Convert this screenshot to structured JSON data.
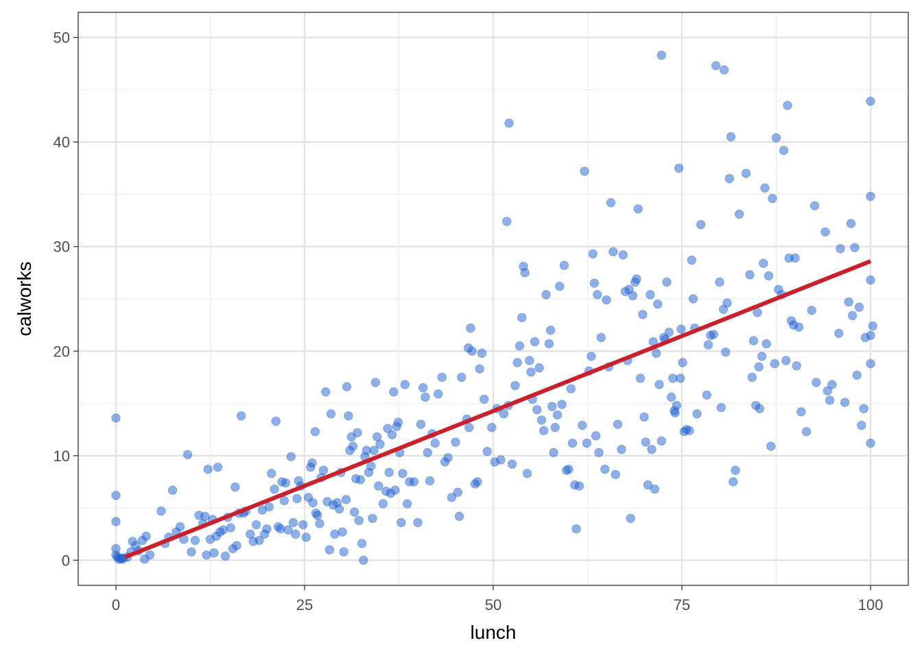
{
  "chart_data": {
    "type": "scatter",
    "title": "",
    "xlabel": "lunch",
    "ylabel": "calworks",
    "xlim": [
      -5,
      105
    ],
    "ylim": [
      -2.4,
      52.4
    ],
    "x_ticks": [
      0,
      25,
      50,
      75,
      100
    ],
    "y_ticks": [
      0,
      10,
      20,
      30,
      40,
      50
    ],
    "grid": true,
    "point_color": "#1f5fd0",
    "line_color": "#c9202b",
    "trend_line": {
      "x": [
        1.2,
        100
      ],
      "y": [
        0.3,
        28.6
      ]
    },
    "points": [
      [
        0,
        13.6
      ],
      [
        0,
        6.2
      ],
      [
        0,
        3.7
      ],
      [
        0,
        1.1
      ],
      [
        0,
        0.5
      ],
      [
        0.2,
        0.3
      ],
      [
        0.4,
        0.1
      ],
      [
        0.6,
        0.2
      ],
      [
        0.8,
        0.1
      ],
      [
        1,
        0.2
      ],
      [
        1.5,
        0.3
      ],
      [
        2,
        0.8
      ],
      [
        2.2,
        1.8
      ],
      [
        2.6,
        1.4
      ],
      [
        3,
        0.9
      ],
      [
        3.5,
        1.9
      ],
      [
        3.8,
        0.1
      ],
      [
        4,
        2.3
      ],
      [
        4.5,
        0.5
      ],
      [
        6,
        4.7
      ],
      [
        6.5,
        1.6
      ],
      [
        7,
        2.2
      ],
      [
        7.5,
        6.7
      ],
      [
        8,
        2.7
      ],
      [
        8.5,
        3.2
      ],
      [
        9,
        2
      ],
      [
        9.5,
        10.1
      ],
      [
        10,
        0.8
      ],
      [
        10.5,
        1.9
      ],
      [
        11,
        4.3
      ],
      [
        11.5,
        3.5
      ],
      [
        11.8,
        4.2
      ],
      [
        12,
        0.5
      ],
      [
        12.2,
        8.7
      ],
      [
        12.5,
        2
      ],
      [
        12.8,
        3.9
      ],
      [
        13,
        0.7
      ],
      [
        13.3,
        2.3
      ],
      [
        13.5,
        8.9
      ],
      [
        13.8,
        2.7
      ],
      [
        14.2,
        2.9
      ],
      [
        14.5,
        0.4
      ],
      [
        14.8,
        4.1
      ],
      [
        15.2,
        3.1
      ],
      [
        15.5,
        1.1
      ],
      [
        15.8,
        7
      ],
      [
        16,
        1.4
      ],
      [
        16.3,
        4.5
      ],
      [
        16.6,
        13.8
      ],
      [
        16.9,
        4.5
      ],
      [
        17.2,
        4.7
      ],
      [
        17.8,
        2.5
      ],
      [
        18.2,
        1.8
      ],
      [
        18.6,
        3.4
      ],
      [
        19,
        1.9
      ],
      [
        19.4,
        4.8
      ],
      [
        19.7,
        2.5
      ],
      [
        20,
        3
      ],
      [
        20.3,
        5.1
      ],
      [
        20.6,
        8.3
      ],
      [
        21,
        6.8
      ],
      [
        21.2,
        13.3
      ],
      [
        21.5,
        3.2
      ],
      [
        21.8,
        3
      ],
      [
        22,
        7.5
      ],
      [
        22.3,
        5.7
      ],
      [
        22.5,
        7.4
      ],
      [
        22.8,
        2.9
      ],
      [
        23.2,
        9.9
      ],
      [
        23.5,
        3.6
      ],
      [
        23.8,
        2.5
      ],
      [
        24,
        5.9
      ],
      [
        24.2,
        7.6
      ],
      [
        24.5,
        7.1
      ],
      [
        24.8,
        3.4
      ],
      [
        25.2,
        2.2
      ],
      [
        25.5,
        6
      ],
      [
        25.8,
        8.9
      ],
      [
        26,
        9.3
      ],
      [
        26.1,
        5.5
      ],
      [
        26.4,
        12.3
      ],
      [
        26.5,
        4.5
      ],
      [
        26.7,
        4.3
      ],
      [
        27,
        3.5
      ],
      [
        27.2,
        7.9
      ],
      [
        27.5,
        8.6
      ],
      [
        27.8,
        16.1
      ],
      [
        28,
        5.6
      ],
      [
        28.3,
        1
      ],
      [
        28.5,
        14
      ],
      [
        28.8,
        5.3
      ],
      [
        29,
        2.5
      ],
      [
        29.3,
        5.5
      ],
      [
        29.6,
        4.9
      ],
      [
        29.8,
        8.4
      ],
      [
        30,
        2.7
      ],
      [
        30.2,
        0.8
      ],
      [
        30.5,
        5.8
      ],
      [
        30.6,
        16.6
      ],
      [
        30.8,
        13.8
      ],
      [
        31,
        10.5
      ],
      [
        31.2,
        11.8
      ],
      [
        31.4,
        10.9
      ],
      [
        31.6,
        4.6
      ],
      [
        31.8,
        7.8
      ],
      [
        32,
        12.2
      ],
      [
        32.2,
        3.8
      ],
      [
        32.4,
        7.7
      ],
      [
        32.6,
        1.6
      ],
      [
        32.8,
        0
      ],
      [
        33,
        9.9
      ],
      [
        33.2,
        10.5
      ],
      [
        33.5,
        8.4
      ],
      [
        33.8,
        9
      ],
      [
        34,
        4
      ],
      [
        34.2,
        10.5
      ],
      [
        34.4,
        17
      ],
      [
        34.6,
        11.8
      ],
      [
        34.8,
        7.1
      ],
      [
        35,
        11.1
      ],
      [
        35.4,
        5.4
      ],
      [
        35.8,
        6.6
      ],
      [
        36,
        12.6
      ],
      [
        36.2,
        8.4
      ],
      [
        36.4,
        6.4
      ],
      [
        36.6,
        12
      ],
      [
        36.8,
        16.1
      ],
      [
        37,
        6.7
      ],
      [
        37.2,
        12.8
      ],
      [
        37.4,
        13.2
      ],
      [
        37.6,
        10.3
      ],
      [
        37.8,
        3.6
      ],
      [
        38,
        8.3
      ],
      [
        38.3,
        16.8
      ],
      [
        38.6,
        5.4
      ],
      [
        38.9,
        7.5
      ],
      [
        39.5,
        7.5
      ],
      [
        40,
        3.6
      ],
      [
        40.4,
        13
      ],
      [
        40.7,
        16.5
      ],
      [
        41,
        15.6
      ],
      [
        41.3,
        10.3
      ],
      [
        41.6,
        7.6
      ],
      [
        41.9,
        12.1
      ],
      [
        42.3,
        11.2
      ],
      [
        42.7,
        15.9
      ],
      [
        43.2,
        17.5
      ],
      [
        43.6,
        9.4
      ],
      [
        44,
        9.8
      ],
      [
        44.5,
        6
      ],
      [
        45,
        11.3
      ],
      [
        45.3,
        6.5
      ],
      [
        45.5,
        4.2
      ],
      [
        45.8,
        17.5
      ],
      [
        46.5,
        13.5
      ],
      [
        46.7,
        20.3
      ],
      [
        46.8,
        12.7
      ],
      [
        47,
        22.2
      ],
      [
        47.2,
        20
      ],
      [
        47.6,
        7.3
      ],
      [
        47.9,
        7.5
      ],
      [
        48.2,
        18.3
      ],
      [
        48.5,
        19.8
      ],
      [
        48.8,
        15.4
      ],
      [
        49.2,
        10.4
      ],
      [
        49.8,
        12.7
      ],
      [
        50.2,
        9.4
      ],
      [
        50.5,
        14.5
      ],
      [
        51,
        9.6
      ],
      [
        51.4,
        14
      ],
      [
        51.8,
        32.4
      ],
      [
        52,
        14.8
      ],
      [
        52.5,
        9.2
      ],
      [
        52.9,
        16.7
      ],
      [
        53.2,
        18.9
      ],
      [
        53.5,
        20.5
      ],
      [
        53.8,
        23.2
      ],
      [
        54,
        28.1
      ],
      [
        54.2,
        27.5
      ],
      [
        54.5,
        8.3
      ],
      [
        54.8,
        19.1
      ],
      [
        55,
        18
      ],
      [
        55.2,
        15.4
      ],
      [
        55.5,
        20.9
      ],
      [
        55.8,
        14.4
      ],
      [
        56.1,
        18.4
      ],
      [
        56.4,
        13.4
      ],
      [
        56.7,
        12.4
      ],
      [
        57,
        25.4
      ],
      [
        57.4,
        20.7
      ],
      [
        57.6,
        22
      ],
      [
        57.8,
        14.7
      ],
      [
        58,
        10.3
      ],
      [
        58.2,
        12.7
      ],
      [
        58.5,
        13.9
      ],
      [
        58.8,
        26.2
      ],
      [
        59.1,
        14.9
      ],
      [
        59.4,
        28.2
      ],
      [
        59.7,
        8.6
      ],
      [
        60,
        8.7
      ],
      [
        60.3,
        16.4
      ],
      [
        60.5,
        11.2
      ],
      [
        60.8,
        7.2
      ],
      [
        61,
        3
      ],
      [
        61.4,
        7.1
      ],
      [
        61.8,
        12.9
      ],
      [
        62.1,
        37.2
      ],
      [
        62.4,
        11.2
      ],
      [
        62.7,
        18.1
      ],
      [
        63,
        19.5
      ],
      [
        63.2,
        29.3
      ],
      [
        63.4,
        26.5
      ],
      [
        63.6,
        11.9
      ],
      [
        63.8,
        25.4
      ],
      [
        64,
        10.3
      ],
      [
        64.3,
        21.3
      ],
      [
        64.8,
        8.7
      ],
      [
        52.1,
        41.8
      ],
      [
        65,
        24.9
      ],
      [
        65.3,
        18.5
      ],
      [
        65.6,
        34.2
      ],
      [
        65.9,
        29.5
      ],
      [
        66.2,
        8.2
      ],
      [
        66.5,
        13
      ],
      [
        67,
        10.6
      ],
      [
        67.2,
        29.2
      ],
      [
        67.5,
        25.7
      ],
      [
        67.8,
        19.1
      ],
      [
        68,
        25.9
      ],
      [
        68.2,
        4
      ],
      [
        68.5,
        25.3
      ],
      [
        68.8,
        26.6
      ],
      [
        69,
        26.9
      ],
      [
        69.2,
        33.6
      ],
      [
        69.5,
        17.4
      ],
      [
        69.8,
        23.5
      ],
      [
        70,
        13.7
      ],
      [
        70.2,
        11.3
      ],
      [
        70.5,
        7.2
      ],
      [
        70.8,
        25.4
      ],
      [
        71,
        10.6
      ],
      [
        71.2,
        20.9
      ],
      [
        71.4,
        6.8
      ],
      [
        71.6,
        19.8
      ],
      [
        71.8,
        24.5
      ],
      [
        72,
        16.8
      ],
      [
        72.3,
        11.4
      ],
      [
        72.6,
        21.3
      ],
      [
        72.8,
        21.1
      ],
      [
        73,
        26.6
      ],
      [
        73.3,
        21.8
      ],
      [
        73.6,
        15.6
      ],
      [
        73.8,
        17.4
      ],
      [
        74,
        14.3
      ],
      [
        74.1,
        14.1
      ],
      [
        74.3,
        14.8
      ],
      [
        74.6,
        37.5
      ],
      [
        74.8,
        17.4
      ],
      [
        74.9,
        22.1
      ],
      [
        75.1,
        18.9
      ],
      [
        75.3,
        12.3
      ],
      [
        75.6,
        12.5
      ],
      [
        76,
        12.4
      ],
      [
        76.3,
        28.7
      ],
      [
        76.5,
        25
      ],
      [
        76.7,
        22.2
      ],
      [
        72.3,
        48.3
      ],
      [
        77,
        14
      ],
      [
        77.5,
        32.1
      ],
      [
        78.3,
        15.8
      ],
      [
        78.5,
        20.6
      ],
      [
        78.8,
        21.5
      ],
      [
        79.2,
        21.6
      ],
      [
        79.5,
        47.3
      ],
      [
        80,
        26.6
      ],
      [
        80.2,
        14.6
      ],
      [
        80.5,
        24
      ],
      [
        80.8,
        19.9
      ],
      [
        81,
        24.6
      ],
      [
        81.3,
        36.5
      ],
      [
        81.5,
        40.5
      ],
      [
        81.8,
        7.5
      ],
      [
        82.1,
        8.6
      ],
      [
        82.6,
        33.1
      ],
      [
        83.5,
        37
      ],
      [
        80.6,
        46.9
      ],
      [
        84,
        27.3
      ],
      [
        84.3,
        17.5
      ],
      [
        84.5,
        21
      ],
      [
        84.8,
        14.8
      ],
      [
        85,
        23.7
      ],
      [
        85.2,
        18.5
      ],
      [
        85.3,
        14.5
      ],
      [
        85.6,
        19.5
      ],
      [
        85.8,
        28.4
      ],
      [
        86,
        35.6
      ],
      [
        86.2,
        20.7
      ],
      [
        86.5,
        27.2
      ],
      [
        86.8,
        10.9
      ],
      [
        87,
        34.6
      ],
      [
        87.3,
        18.8
      ],
      [
        87.5,
        40.4
      ],
      [
        87.8,
        25.9
      ],
      [
        88.2,
        25.4
      ],
      [
        88.5,
        39.2
      ],
      [
        88.8,
        19.1
      ],
      [
        89,
        43.5
      ],
      [
        89.2,
        28.9
      ],
      [
        89.5,
        22.9
      ],
      [
        89.8,
        22.5
      ],
      [
        90,
        28.9
      ],
      [
        90.2,
        18.6
      ],
      [
        90.5,
        22.3
      ],
      [
        90.8,
        14.2
      ],
      [
        91.5,
        12.3
      ],
      [
        92.2,
        23.9
      ],
      [
        92.6,
        33.9
      ],
      [
        92.8,
        17
      ],
      [
        94,
        31.4
      ],
      [
        94.3,
        16.2
      ],
      [
        94.6,
        15.3
      ],
      [
        94.9,
        16.8
      ],
      [
        95.8,
        21.7
      ],
      [
        96,
        29.8
      ],
      [
        96.6,
        15.1
      ],
      [
        97.1,
        24.7
      ],
      [
        97.4,
        32.2
      ],
      [
        97.6,
        23.4
      ],
      [
        97.9,
        29.9
      ],
      [
        98.2,
        17.7
      ],
      [
        98.5,
        24.2
      ],
      [
        98.8,
        12.9
      ],
      [
        99.1,
        14.5
      ],
      [
        99.3,
        21.3
      ],
      [
        100,
        11.2
      ],
      [
        100.3,
        22.4
      ],
      [
        100,
        43.9
      ],
      [
        100,
        34.8
      ],
      [
        100,
        26.8
      ],
      [
        100,
        21.5
      ],
      [
        100,
        18.8
      ]
    ]
  }
}
